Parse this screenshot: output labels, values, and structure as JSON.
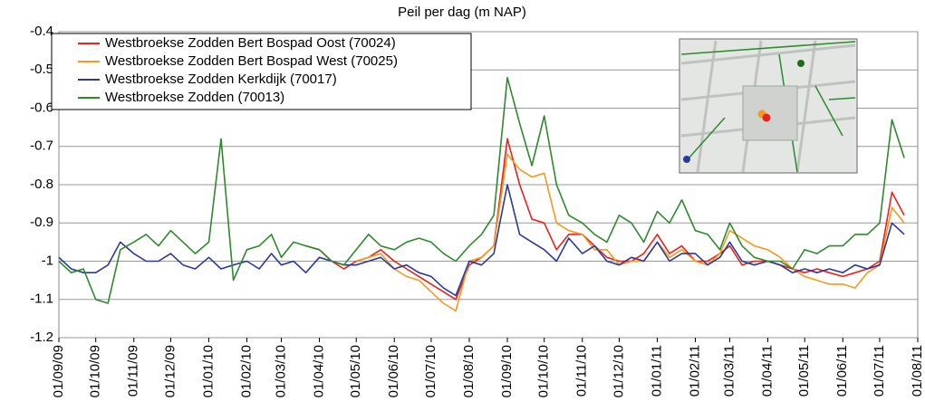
{
  "chart_data": {
    "type": "line",
    "title": "Peil per dag (m NAP)",
    "x": [
      "01/09/09",
      "11/09/09",
      "21/09/09",
      "01/10/09",
      "11/10/09",
      "21/10/09",
      "01/11/09",
      "11/11/09",
      "21/11/09",
      "01/12/09",
      "11/12/09",
      "21/12/09",
      "01/01/10",
      "11/01/10",
      "21/01/10",
      "01/02/10",
      "11/02/10",
      "21/02/10",
      "01/03/10",
      "11/03/10",
      "21/03/10",
      "01/04/10",
      "11/04/10",
      "21/04/10",
      "01/05/10",
      "11/05/10",
      "21/05/10",
      "01/06/10",
      "11/06/10",
      "21/06/10",
      "01/07/10",
      "11/07/10",
      "21/07/10",
      "01/08/10",
      "11/08/10",
      "21/08/10",
      "01/09/10",
      "11/09/10",
      "21/09/10",
      "01/10/10",
      "11/10/10",
      "21/10/10",
      "01/11/10",
      "11/11/10",
      "21/11/10",
      "01/12/10",
      "11/12/10",
      "21/12/10",
      "01/01/11",
      "11/01/11",
      "21/01/11",
      "01/02/11",
      "11/02/11",
      "21/02/11",
      "01/03/11",
      "11/03/11",
      "21/03/11",
      "01/04/11",
      "11/04/11",
      "21/04/11",
      "01/05/11",
      "11/05/11",
      "21/05/11",
      "01/06/11",
      "11/06/11",
      "21/06/11",
      "01/07/11",
      "11/07/11",
      "21/07/11"
    ],
    "series": [
      {
        "name": "Westbroekse Zodden Bert Bospad Oost (70024)",
        "color": "#e8221c",
        "values": [
          null,
          null,
          null,
          null,
          null,
          null,
          null,
          null,
          null,
          null,
          null,
          null,
          null,
          null,
          null,
          null,
          null,
          null,
          null,
          null,
          -0.96,
          -0.97,
          -1.0,
          -1.02,
          -1.0,
          -0.99,
          -0.97,
          -1.0,
          -1.02,
          -1.04,
          -1.06,
          -1.08,
          -1.1,
          -1.01,
          -0.99,
          -0.96,
          -0.68,
          -0.8,
          -0.89,
          -0.9,
          -0.97,
          -0.93,
          -0.93,
          -0.96,
          -0.99,
          -1.0,
          -1.0,
          -0.98,
          -0.93,
          -0.98,
          -0.96,
          -1.0,
          -1.0,
          -0.98,
          -0.96,
          -1.01,
          -1.0,
          -1.0,
          -1.01,
          -1.02,
          -1.03,
          -1.02,
          -1.03,
          -1.04,
          -1.03,
          -1.02,
          -1.0,
          -0.82,
          -0.88
        ]
      },
      {
        "name": "Westbroekse Zodden Bert Bospad West (70025)",
        "color": "#f39a1f",
        "values": [
          null,
          null,
          null,
          null,
          null,
          null,
          null,
          null,
          null,
          null,
          null,
          null,
          null,
          null,
          null,
          null,
          null,
          null,
          null,
          null,
          null,
          null,
          null,
          null,
          -1.0,
          -0.99,
          -0.98,
          -1.02,
          -1.04,
          -1.05,
          -1.08,
          -1.11,
          -1.13,
          -1.0,
          -0.99,
          -0.96,
          -0.72,
          -0.76,
          -0.78,
          -0.77,
          -0.9,
          -0.92,
          -0.93,
          -0.97,
          -0.97,
          -1.01,
          -1.0,
          -1.0,
          -0.95,
          -0.99,
          -0.97,
          -1.0,
          -1.01,
          -0.98,
          -0.92,
          -0.94,
          -0.96,
          -0.97,
          -0.99,
          -1.02,
          -1.04,
          -1.05,
          -1.06,
          -1.06,
          -1.07,
          -1.03,
          -1.01,
          -0.86,
          -0.9
        ]
      },
      {
        "name": "Westbroekse Zodden Kerkdijk (70017)",
        "color": "#2b3a9a",
        "values": [
          -0.99,
          -1.02,
          -1.03,
          -1.03,
          -1.01,
          -0.95,
          -0.98,
          -1.0,
          -1.0,
          -0.98,
          -1.01,
          -1.02,
          -0.99,
          -1.02,
          -1.01,
          -1.0,
          -1.02,
          -0.98,
          -1.01,
          -1.0,
          -1.03,
          -0.99,
          -1.0,
          -1.01,
          -1.01,
          -1.0,
          -0.99,
          -1.02,
          -1.01,
          -1.03,
          -1.04,
          -1.07,
          -1.09,
          -1.0,
          -1.01,
          -0.98,
          -0.8,
          -0.93,
          -0.95,
          -0.97,
          -1.0,
          -0.94,
          -0.98,
          -0.96,
          -1.0,
          -1.01,
          -0.99,
          -1.0,
          -0.95,
          -1.0,
          -0.98,
          -0.98,
          -1.01,
          -0.99,
          -0.95,
          -1.0,
          -1.01,
          -1.0,
          -1.01,
          -1.03,
          -1.02,
          -1.03,
          -1.02,
          -1.03,
          -1.01,
          -1.02,
          -1.01,
          -0.9,
          -0.93
        ]
      },
      {
        "name": "Westbroekse Zodden (70013)",
        "color": "#2d8a2d",
        "values": [
          -1.0,
          -1.03,
          -1.02,
          -1.1,
          -1.11,
          -0.97,
          -0.95,
          -0.93,
          -0.96,
          -0.92,
          -0.95,
          -0.98,
          -0.95,
          -0.68,
          -1.05,
          -0.97,
          -0.96,
          -0.93,
          -0.99,
          -0.95,
          -0.96,
          -0.97,
          -1.0,
          -1.01,
          -0.97,
          -0.93,
          -0.96,
          -0.97,
          -0.95,
          -0.94,
          -0.95,
          -0.98,
          -1.0,
          -0.96,
          -0.93,
          -0.88,
          -0.52,
          -0.64,
          -0.75,
          -0.62,
          -0.8,
          -0.88,
          -0.9,
          -0.93,
          -0.95,
          -0.88,
          -0.9,
          -0.95,
          -0.87,
          -0.9,
          -0.84,
          -0.92,
          -0.93,
          -0.97,
          -0.9,
          -0.96,
          -0.99,
          -1.0,
          -1.0,
          -1.02,
          -0.97,
          -0.98,
          -0.96,
          -0.96,
          -0.93,
          -0.93,
          -0.9,
          -0.63,
          -0.73
        ]
      }
    ],
    "xlim": [
      "01/09/09",
      "01/08/11"
    ],
    "xticks": [
      "01/09/09",
      "01/10/09",
      "01/11/09",
      "01/12/09",
      "01/01/10",
      "01/02/10",
      "01/03/10",
      "01/04/10",
      "01/05/10",
      "01/06/10",
      "01/07/10",
      "01/08/10",
      "01/09/10",
      "01/10/10",
      "01/11/10",
      "01/12/10",
      "01/01/11",
      "01/02/11",
      "01/03/11",
      "01/04/11",
      "01/05/11",
      "01/06/11",
      "01/07/11",
      "01/08/11"
    ],
    "ylim": [
      -1.2,
      -0.4
    ],
    "yticks": [
      -0.4,
      -0.5,
      -0.6,
      -0.7,
      -0.8,
      -0.9,
      -1,
      -1.1,
      -1.2
    ],
    "grid": true
  }
}
